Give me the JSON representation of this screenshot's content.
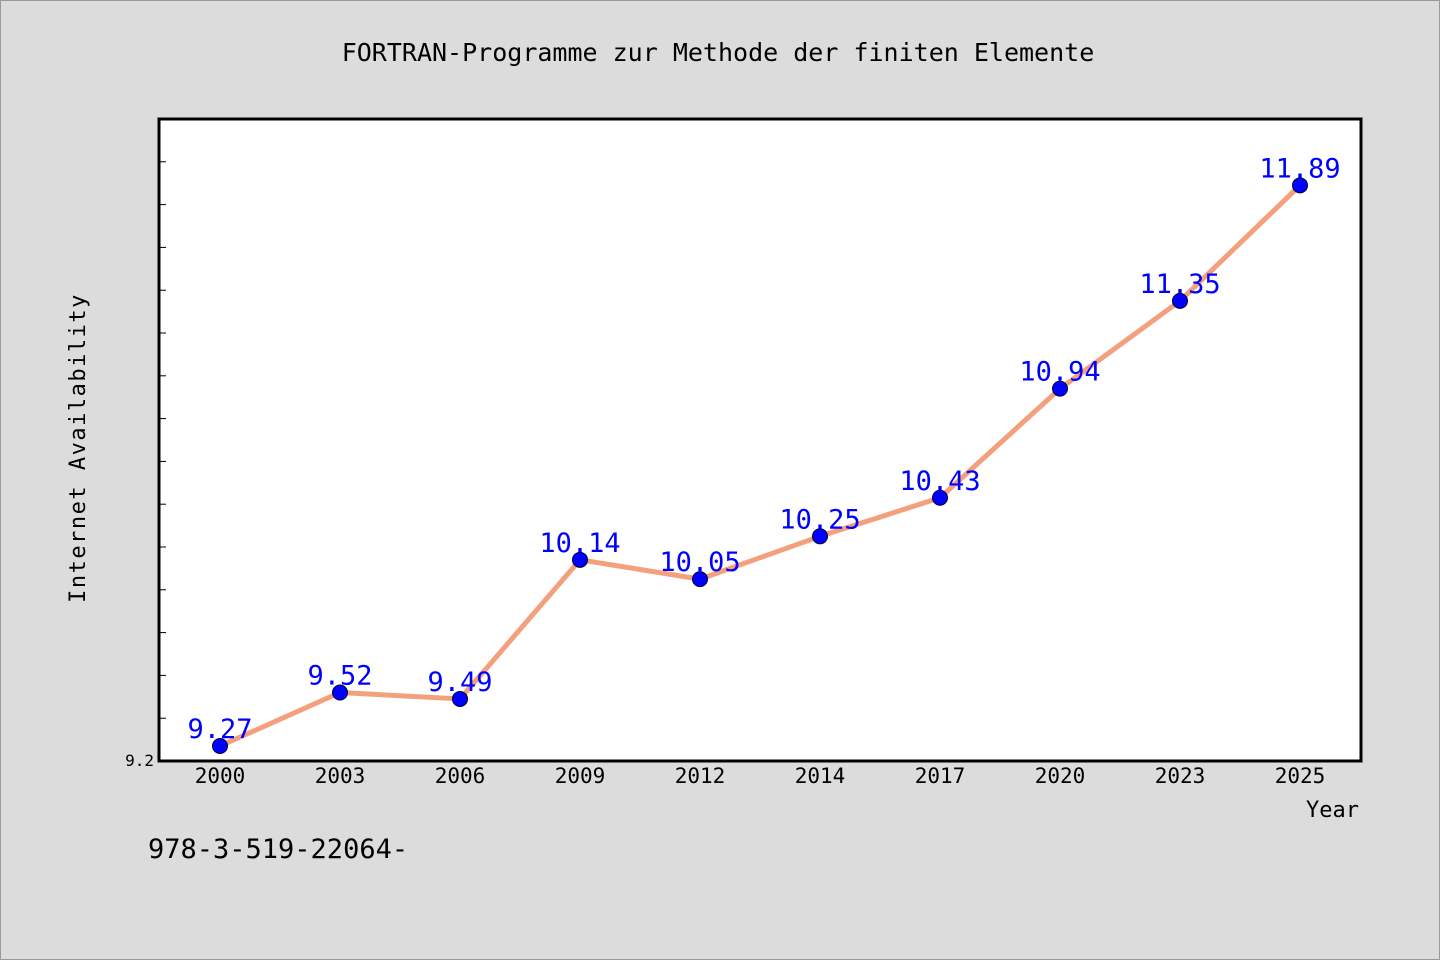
{
  "chart_data": {
    "type": "line",
    "title": "FORTRAN-Programme zur Methode der finiten Elemente",
    "xlabel": "Year",
    "ylabel": "Internet Availability",
    "categories": [
      "2000",
      "2003",
      "2006",
      "2009",
      "2012",
      "2014",
      "2017",
      "2020",
      "2023",
      "2025"
    ],
    "series": [
      {
        "values": [
          9.27,
          9.52,
          9.49,
          10.14,
          10.05,
          10.25,
          10.43,
          10.94,
          11.35,
          11.89
        ],
        "labels": [
          "9.27",
          "9.52",
          "9.49",
          "10.14",
          "10.05",
          "10.25",
          "10.43",
          "10.94",
          "11.35",
          "11.89"
        ]
      }
    ],
    "ylim": [
      9.2,
      12.2
    ],
    "y_tick_labels": [
      "9.2"
    ],
    "grid": false,
    "line_color": "#f4a07c",
    "marker_color": "#0000ff",
    "label_color": "#0000ff"
  },
  "footer": {
    "text": "978-3-519-22064-"
  }
}
